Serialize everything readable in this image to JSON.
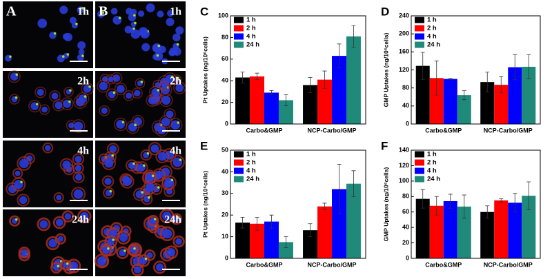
{
  "image_panels": [
    {
      "label": "A",
      "times": [
        "1h",
        "2h",
        "4h",
        "24h"
      ]
    },
    {
      "label": "B",
      "times": [
        "1h",
        "2h",
        "4h",
        "24h"
      ]
    }
  ],
  "chart_data": [
    {
      "type": "bar",
      "panel": "C",
      "ylabel": "Pt Uptakes (ng/10⁶cells)",
      "categories": [
        "Carbo&GMP",
        "NCP-Carbo/GMP"
      ],
      "ylim": [
        0,
        100
      ],
      "yticks": [
        0,
        20,
        40,
        60,
        80,
        100
      ],
      "legend": "upper left",
      "series": [
        {
          "name": "1 h",
          "color": "#000000",
          "values": [
            43,
            36
          ],
          "errors": [
            5,
            7
          ]
        },
        {
          "name": "2 h",
          "color": "#ff0000",
          "values": [
            44,
            41
          ],
          "errors": [
            3,
            8
          ]
        },
        {
          "name": "4 h",
          "color": "#0000ff",
          "values": [
            29,
            63
          ],
          "errors": [
            2,
            11
          ]
        },
        {
          "name": "24 h",
          "color": "#1f8a7a",
          "values": [
            22,
            81
          ],
          "errors": [
            5,
            10
          ]
        }
      ]
    },
    {
      "type": "bar",
      "panel": "D",
      "ylabel": "GMP Uptakes (ng/10⁶cells)",
      "categories": [
        "Carbo&GMP",
        "NCP-Carbo/GMP"
      ],
      "ylim": [
        0,
        240
      ],
      "yticks": [
        0,
        40,
        80,
        120,
        160,
        200,
        240
      ],
      "legend": "upper left",
      "series": [
        {
          "name": "1 h",
          "color": "#000000",
          "values": [
            129,
            93
          ],
          "errors": [
            30,
            22
          ]
        },
        {
          "name": "2 h",
          "color": "#ff0000",
          "values": [
            102,
            87
          ],
          "errors": [
            38,
            18
          ]
        },
        {
          "name": "4 h",
          "color": "#0000ff",
          "values": [
            100,
            126
          ],
          "errors": [
            1,
            28
          ]
        },
        {
          "name": "24 h",
          "color": "#1f8a7a",
          "values": [
            64,
            127
          ],
          "errors": [
            10,
            27
          ]
        }
      ]
    },
    {
      "type": "bar",
      "panel": "E",
      "ylabel": "Pt Uptakes (ng/10⁶cells)",
      "categories": [
        "Carbo&GMP",
        "NCP-Carbo/GMP"
      ],
      "ylim": [
        0,
        50
      ],
      "yticks": [
        0,
        10,
        20,
        30,
        40,
        50
      ],
      "legend": "upper left",
      "series": [
        {
          "name": "1 h",
          "color": "#000000",
          "values": [
            16.5,
            13
          ],
          "errors": [
            2.5,
            3
          ]
        },
        {
          "name": "2 h",
          "color": "#ff0000",
          "values": [
            16,
            24
          ],
          "errors": [
            3,
            1.5
          ]
        },
        {
          "name": "4 h",
          "color": "#0000ff",
          "values": [
            17,
            32
          ],
          "errors": [
            3,
            11.5
          ]
        },
        {
          "name": "24 h",
          "color": "#1f8a7a",
          "values": [
            7.5,
            34.5
          ],
          "errors": [
            2.5,
            6
          ]
        }
      ]
    },
    {
      "type": "bar",
      "panel": "F",
      "ylabel": "GMP Uptakes (ng/10⁶cells)",
      "categories": [
        "Carbo&GMP",
        "NCP-Carbo/GMP"
      ],
      "ylim": [
        0,
        140
      ],
      "yticks": [
        0,
        20,
        40,
        60,
        80,
        100,
        120,
        140
      ],
      "legend": "upper left",
      "series": [
        {
          "name": "1 h",
          "color": "#000000",
          "values": [
            77,
            60
          ],
          "errors": [
            12,
            8
          ]
        },
        {
          "name": "2 h",
          "color": "#ff0000",
          "values": [
            68,
            75
          ],
          "errors": [
            12,
            2
          ]
        },
        {
          "name": "4 h",
          "color": "#0000ff",
          "values": [
            74,
            72
          ],
          "errors": [
            9,
            12
          ]
        },
        {
          "name": "24 h",
          "color": "#1f8a7a",
          "values": [
            67,
            81
          ],
          "errors": [
            15,
            18
          ]
        }
      ]
    }
  ]
}
